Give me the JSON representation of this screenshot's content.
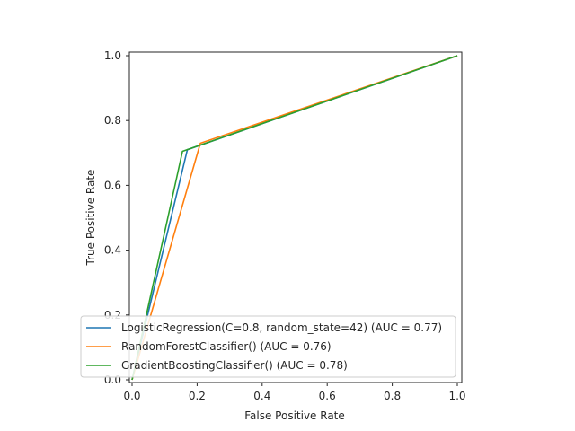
{
  "chart_data": {
    "type": "line",
    "title": "",
    "xlabel": "False Positive Rate",
    "ylabel": "True Positive Rate",
    "xlim": [
      0,
      1
    ],
    "ylim": [
      0,
      1
    ],
    "xticks": [
      0.0,
      0.2,
      0.4,
      0.6,
      0.8,
      1.0
    ],
    "yticks": [
      0.0,
      0.2,
      0.4,
      0.6,
      0.8,
      1.0
    ],
    "xtick_labels": [
      "0.0",
      "0.2",
      "0.4",
      "0.6",
      "0.8",
      "1.0"
    ],
    "ytick_labels": [
      "0.0",
      "0.2",
      "0.4",
      "0.6",
      "0.8",
      "1.0"
    ],
    "grid": false,
    "legend_position": "lower-right",
    "series": [
      {
        "name": "LogisticRegression(C=0.8, random_state=42) (AUC = 0.77)",
        "color": "#1f77b4",
        "x": [
          0.0,
          0.17,
          1.0
        ],
        "y": [
          0.0,
          0.71,
          1.0
        ]
      },
      {
        "name": "RandomForestClassifier() (AUC = 0.76)",
        "color": "#ff7f0e",
        "x": [
          0.0,
          0.21,
          1.0
        ],
        "y": [
          0.0,
          0.73,
          1.0
        ]
      },
      {
        "name": "GradientBoostingClassifier() (AUC = 0.78)",
        "color": "#2ca02c",
        "x": [
          0.0,
          0.155,
          1.0
        ],
        "y": [
          0.0,
          0.705,
          1.0
        ]
      }
    ]
  }
}
